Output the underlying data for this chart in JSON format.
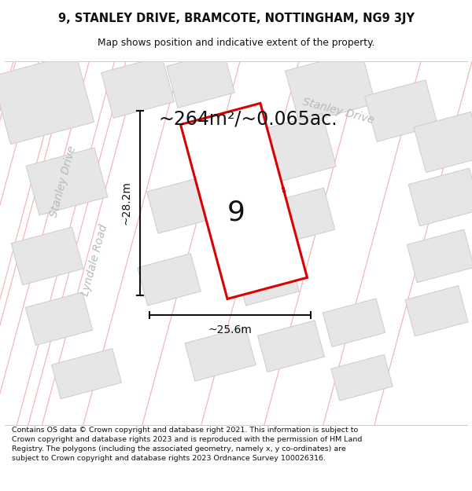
{
  "title_line1": "9, STANLEY DRIVE, BRAMCOTE, NOTTINGHAM, NG9 3JY",
  "title_line2": "Map shows position and indicative extent of the property.",
  "area_text": "~264m²/~0.065ac.",
  "label_number": "9",
  "dim_width": "~25.6m",
  "dim_height": "~28.2m",
  "street_stanley_left": "Stanley Drive",
  "street_stanley_upper": "Stanley Drive",
  "street_lyndale": "Lyndale Road",
  "footer_text": "Contains OS data © Crown copyright and database right 2021. This information is subject to Crown copyright and database rights 2023 and is reproduced with the permission of HM Land Registry. The polygons (including the associated geometry, namely x, y co-ordinates) are subject to Crown copyright and database rights 2023 Ordnance Survey 100026316.",
  "bg_color": "#ffffff",
  "map_bg": "#f9f9f9",
  "building_fill": "#e6e6e6",
  "building_stroke": "#cccccc",
  "pink_road_color": "#f5b8b8",
  "red_polygon_color": "#dd0000",
  "dim_color": "#111111",
  "text_color": "#111111",
  "street_color": "#b8b8b8",
  "figsize": [
    6.0,
    6.25
  ],
  "dpi": 100
}
